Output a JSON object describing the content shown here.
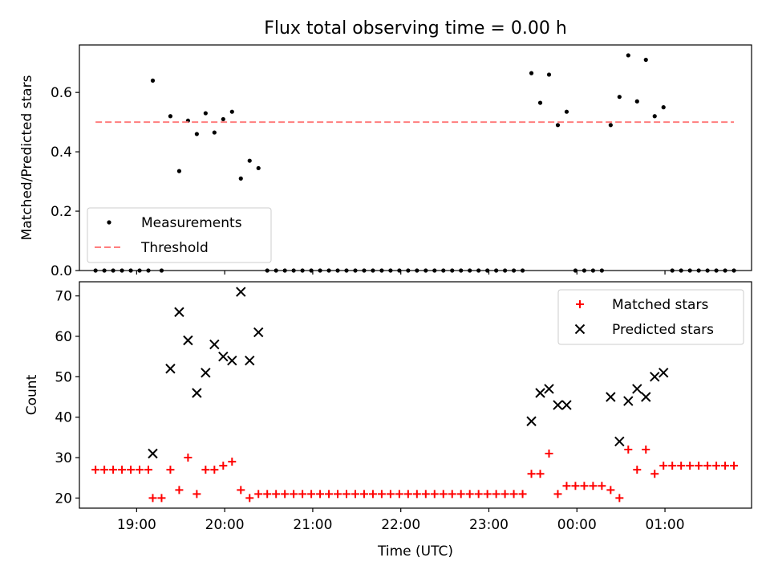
{
  "title": "Flux total observing time = 0.00 h",
  "colors": {
    "measurement": "#000000",
    "threshold": "#ff7f7f",
    "matched": "#ff0000",
    "predicted": "#000000"
  },
  "chart_data": [
    {
      "type": "scatter",
      "ylabel": "Matched/Predicted stars",
      "xlabel": "",
      "xlim": [
        "18:21",
        "01:59"
      ],
      "ylim": [
        0,
        0.76
      ],
      "yticks": [
        "0.0",
        "0.2",
        "0.4",
        "0.6"
      ],
      "grid": false,
      "legend_position": "lower-left",
      "series": [
        {
          "name": "Measurements",
          "marker": "dot",
          "points": [
            [
              "18:32",
              0.0
            ],
            [
              "18:38",
              0.0
            ],
            [
              "18:44",
              0.0
            ],
            [
              "18:50",
              0.0
            ],
            [
              "18:56",
              0.0
            ],
            [
              "19:02",
              0.0
            ],
            [
              "19:08",
              0.0
            ],
            [
              "19:11",
              0.64
            ],
            [
              "19:17",
              0.0
            ],
            [
              "19:23",
              0.52
            ],
            [
              "19:29",
              0.335
            ],
            [
              "19:35",
              0.505
            ],
            [
              "19:41",
              0.46
            ],
            [
              "19:47",
              0.53
            ],
            [
              "19:53",
              0.465
            ],
            [
              "19:59",
              0.51
            ],
            [
              "20:05",
              0.535
            ],
            [
              "20:11",
              0.31
            ],
            [
              "20:17",
              0.37
            ],
            [
              "20:23",
              0.345
            ],
            [
              "20:29",
              0.0
            ],
            [
              "20:35",
              0.0
            ],
            [
              "20:41",
              0.0
            ],
            [
              "20:47",
              0.0
            ],
            [
              "20:53",
              0.0
            ],
            [
              "20:59",
              0.0
            ],
            [
              "21:05",
              0.0
            ],
            [
              "21:11",
              0.0
            ],
            [
              "21:17",
              0.0
            ],
            [
              "21:23",
              0.0
            ],
            [
              "21:29",
              0.0
            ],
            [
              "21:35",
              0.0
            ],
            [
              "21:41",
              0.0
            ],
            [
              "21:47",
              0.0
            ],
            [
              "21:53",
              0.0
            ],
            [
              "21:59",
              0.0
            ],
            [
              "22:05",
              0.0
            ],
            [
              "22:11",
              0.0
            ],
            [
              "22:17",
              0.0
            ],
            [
              "22:23",
              0.0
            ],
            [
              "22:29",
              0.0
            ],
            [
              "22:35",
              0.0
            ],
            [
              "22:41",
              0.0
            ],
            [
              "22:47",
              0.0
            ],
            [
              "22:53",
              0.0
            ],
            [
              "22:59",
              0.0
            ],
            [
              "23:05",
              0.0
            ],
            [
              "23:11",
              0.0
            ],
            [
              "23:17",
              0.0
            ],
            [
              "23:23",
              0.0
            ],
            [
              "23:29",
              0.665
            ],
            [
              "23:35",
              0.565
            ],
            [
              "23:41",
              0.66
            ],
            [
              "23:47",
              0.49
            ],
            [
              "23:53",
              0.535
            ],
            [
              "23:59",
              0.0
            ],
            [
              "00:05",
              0.0
            ],
            [
              "00:11",
              0.0
            ],
            [
              "00:17",
              0.0
            ],
            [
              "00:23",
              0.49
            ],
            [
              "00:29",
              0.585
            ],
            [
              "00:35",
              0.725
            ],
            [
              "00:41",
              0.57
            ],
            [
              "00:47",
              0.71
            ],
            [
              "00:53",
              0.52
            ],
            [
              "00:59",
              0.55
            ],
            [
              "01:05",
              0.0
            ],
            [
              "01:11",
              0.0
            ],
            [
              "01:17",
              0.0
            ],
            [
              "01:23",
              0.0
            ],
            [
              "01:29",
              0.0
            ],
            [
              "01:35",
              0.0
            ],
            [
              "01:41",
              0.0
            ],
            [
              "01:47",
              0.0
            ]
          ]
        },
        {
          "name": "Threshold",
          "style": "dashed",
          "points": [
            [
              "18:32",
              0.5
            ],
            [
              "01:47",
              0.5
            ]
          ]
        }
      ]
    },
    {
      "type": "scatter",
      "ylabel": "Count",
      "xlabel": "Time (UTC)",
      "xlim": [
        "18:21",
        "01:59"
      ],
      "ylim": [
        17.5,
        73.5
      ],
      "yticks": [
        "20",
        "30",
        "40",
        "50",
        "60",
        "70"
      ],
      "xticks": [
        "19:00",
        "20:00",
        "21:00",
        "22:00",
        "23:00",
        "00:00",
        "01:00"
      ],
      "grid": false,
      "legend_position": "upper-right",
      "series": [
        {
          "name": "Matched stars",
          "marker": "plus",
          "points": [
            [
              "18:32",
              27
            ],
            [
              "18:38",
              27
            ],
            [
              "18:44",
              27
            ],
            [
              "18:50",
              27
            ],
            [
              "18:56",
              27
            ],
            [
              "19:02",
              27
            ],
            [
              "19:08",
              27
            ],
            [
              "19:11",
              20
            ],
            [
              "19:17",
              20
            ],
            [
              "19:23",
              27
            ],
            [
              "19:29",
              22
            ],
            [
              "19:35",
              30
            ],
            [
              "19:41",
              21
            ],
            [
              "19:47",
              27
            ],
            [
              "19:53",
              27
            ],
            [
              "19:59",
              28
            ],
            [
              "20:05",
              29
            ],
            [
              "20:11",
              22
            ],
            [
              "20:17",
              20
            ],
            [
              "20:23",
              21
            ],
            [
              "20:29",
              21
            ],
            [
              "20:35",
              21
            ],
            [
              "20:41",
              21
            ],
            [
              "20:47",
              21
            ],
            [
              "20:53",
              21
            ],
            [
              "20:59",
              21
            ],
            [
              "21:05",
              21
            ],
            [
              "21:11",
              21
            ],
            [
              "21:17",
              21
            ],
            [
              "21:23",
              21
            ],
            [
              "21:29",
              21
            ],
            [
              "21:35",
              21
            ],
            [
              "21:41",
              21
            ],
            [
              "21:47",
              21
            ],
            [
              "21:53",
              21
            ],
            [
              "21:59",
              21
            ],
            [
              "22:05",
              21
            ],
            [
              "22:11",
              21
            ],
            [
              "22:17",
              21
            ],
            [
              "22:23",
              21
            ],
            [
              "22:29",
              21
            ],
            [
              "22:35",
              21
            ],
            [
              "22:41",
              21
            ],
            [
              "22:47",
              21
            ],
            [
              "22:53",
              21
            ],
            [
              "22:59",
              21
            ],
            [
              "23:05",
              21
            ],
            [
              "23:11",
              21
            ],
            [
              "23:17",
              21
            ],
            [
              "23:23",
              21
            ],
            [
              "23:29",
              26
            ],
            [
              "23:35",
              26
            ],
            [
              "23:41",
              31
            ],
            [
              "23:47",
              21
            ],
            [
              "23:53",
              23
            ],
            [
              "23:59",
              23
            ],
            [
              "00:05",
              23
            ],
            [
              "00:11",
              23
            ],
            [
              "00:17",
              23
            ],
            [
              "00:23",
              22
            ],
            [
              "00:29",
              20
            ],
            [
              "00:35",
              32
            ],
            [
              "00:41",
              27
            ],
            [
              "00:47",
              32
            ],
            [
              "00:53",
              26
            ],
            [
              "00:59",
              28
            ],
            [
              "01:05",
              28
            ],
            [
              "01:11",
              28
            ],
            [
              "01:17",
              28
            ],
            [
              "01:23",
              28
            ],
            [
              "01:29",
              28
            ],
            [
              "01:35",
              28
            ],
            [
              "01:41",
              28
            ],
            [
              "01:47",
              28
            ]
          ]
        },
        {
          "name": "Predicted stars",
          "marker": "x",
          "points": [
            [
              "19:11",
              31
            ],
            [
              "19:23",
              52
            ],
            [
              "19:29",
              66
            ],
            [
              "19:35",
              59
            ],
            [
              "19:41",
              46
            ],
            [
              "19:47",
              51
            ],
            [
              "19:53",
              58
            ],
            [
              "19:59",
              55
            ],
            [
              "20:05",
              54
            ],
            [
              "20:11",
              71
            ],
            [
              "20:17",
              54
            ],
            [
              "20:23",
              61
            ],
            [
              "23:29",
              39
            ],
            [
              "23:35",
              46
            ],
            [
              "23:41",
              47
            ],
            [
              "23:47",
              43
            ],
            [
              "23:53",
              43
            ],
            [
              "00:23",
              45
            ],
            [
              "00:29",
              34
            ],
            [
              "00:35",
              44
            ],
            [
              "00:41",
              47
            ],
            [
              "00:47",
              45
            ],
            [
              "00:53",
              50
            ],
            [
              "00:59",
              51
            ]
          ]
        }
      ]
    }
  ]
}
